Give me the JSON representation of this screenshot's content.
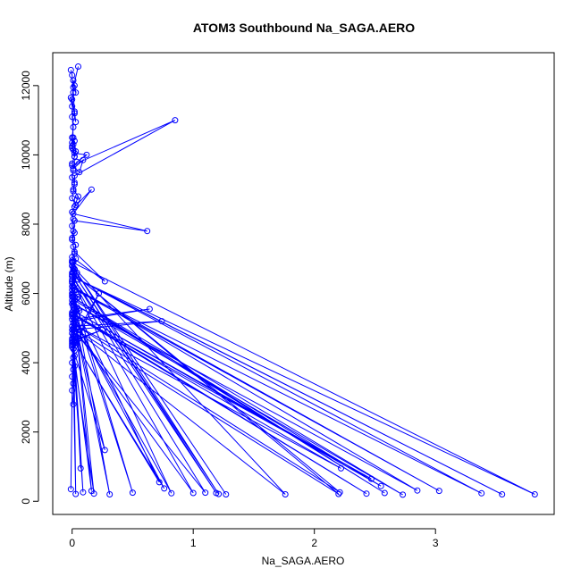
{
  "chart_data": {
    "type": "line",
    "title": "ATOM3 Southbound Na_SAGA.AERO",
    "xlabel": "Na_SAGA.AERO",
    "ylabel": "Altitude (m)",
    "xlim": [
      -0.16,
      3.98
    ],
    "ylim": [
      -380,
      12950
    ],
    "xticks": [
      0,
      1,
      2,
      3
    ],
    "yticks": [
      0,
      2000,
      4000,
      6000,
      8000,
      10000,
      12000
    ],
    "grid": false,
    "legend": "none",
    "series_color": "#0000ff",
    "marker": "open-circle",
    "series": [
      {
        "x": [
          0.05,
          0.01,
          0.03,
          0.02,
          0.01,
          0.0,
          -0.01,
          0.02,
          0.03,
          0.0,
          0.01,
          0.02,
          0.0,
          0.01,
          0.03,
          0.02,
          0.0,
          0.02,
          0.12,
          0.04,
          0.01,
          0.09,
          0.06,
          0.0,
          0.85,
          0.02,
          0.02,
          0.01,
          0.05,
          0.04,
          0.02,
          0.16,
          0.01,
          0.62,
          0.02,
          0.01,
          0.0,
          0.03,
          0.02,
          0.27,
          0.0,
          0.01,
          0.02,
          0.04,
          0.03,
          0.0,
          0.01,
          0.02,
          0.0,
          0.05,
          0.04,
          0.0,
          0.01,
          0.05,
          0.06,
          0.0,
          0.01,
          0.03,
          0.0,
          0.64,
          0.02,
          0.01,
          0.03,
          0.0,
          0.74,
          0.01,
          0.08,
          0.02,
          0.0,
          0.01,
          0.02,
          0.06,
          0.0,
          0.01,
          0.02,
          0.03,
          0.0,
          0.05,
          0.25,
          0.0,
          0.22,
          0.01,
          0.04,
          0.02,
          0.0,
          0.01,
          0.03,
          0.0,
          0.02,
          0.0,
          0.01,
          0.03,
          0.0
        ],
        "y": [
          12550,
          11950,
          11800,
          12000,
          12150,
          11400,
          11650,
          11250,
          10950,
          11600,
          10300,
          10400,
          10250,
          10500,
          10100,
          9950,
          10200,
          10050,
          10000,
          9800,
          9600,
          9850,
          9500,
          9700,
          11000,
          9400,
          9200,
          9000,
          8800,
          8700,
          8500,
          9000,
          8300,
          7800,
          8100,
          7800,
          7600,
          7400,
          7200,
          6350,
          7050,
          6900,
          6700,
          6600,
          6500,
          6350,
          6200,
          6100,
          6000,
          5900,
          5850,
          5700,
          5650,
          5550,
          5500,
          5450,
          5400,
          5300,
          5250,
          5550,
          5200,
          5150,
          5100,
          5050,
          5200,
          4950,
          5000,
          4900,
          4850,
          4800,
          4750,
          4700,
          4650,
          4600,
          4550,
          4500,
          4450,
          4700,
          4950,
          4600,
          6000,
          4400,
          5600,
          5900,
          6100,
          6600,
          6500,
          6800,
          6250,
          6300,
          6700,
          7000,
          6900
        ]
      },
      {
        "x": [
          -0.01,
          0.0,
          0.01,
          0.02,
          0.0,
          0.01,
          0.0,
          0.0,
          0.01,
          0.02,
          0.0,
          0.01,
          0.0,
          0.02,
          0.01,
          0.0,
          0.03,
          0.0,
          0.01,
          0.0,
          0.02,
          0.0,
          0.01,
          0.02,
          0.0,
          0.01,
          0.0,
          0.0,
          0.01,
          0.0,
          0.01,
          0.02,
          0.0,
          0.01,
          0.0,
          0.01,
          0.0,
          0.02,
          0.01,
          0.0,
          0.02,
          0.01,
          0.0,
          0.01,
          0.0,
          0.01
        ],
        "y": [
          12450,
          12300,
          11800,
          11200,
          11100,
          10800,
          10500,
          10350,
          10150,
          9950,
          9750,
          9550,
          9350,
          9150,
          8950,
          8750,
          8550,
          8350,
          8150,
          7950,
          7750,
          7550,
          7350,
          7150,
          6950,
          6750,
          6550,
          6350,
          6150,
          5950,
          5750,
          5550,
          5350,
          5150,
          4950,
          4750,
          4550,
          4350,
          4150,
          4000,
          3900,
          3800,
          3600,
          3400,
          3200,
          2800
        ]
      },
      {
        "x": [
          0.0,
          3.82,
          0.05,
          3.55,
          0.0,
          3.38,
          0.03,
          3.03,
          0.0,
          2.85,
          0.01,
          2.73,
          0.0,
          2.58,
          0.02,
          2.55,
          0.01,
          2.47,
          0.0,
          2.43,
          0.04,
          2.22,
          0.02,
          2.21,
          0.0,
          2.2,
          0.01,
          1.76,
          0.0,
          1.27,
          0.02,
          1.21,
          0.01,
          1.19,
          0.0,
          1.1,
          0.03,
          1.0,
          0.0,
          0.82,
          0.01,
          0.76,
          0.02,
          0.72,
          0.0,
          0.5,
          0.01,
          0.31,
          0.02,
          0.27,
          0.0,
          0.18,
          0.01,
          0.16,
          0.0,
          0.09,
          0.02,
          0.07,
          0.0,
          0.03,
          0.01,
          -0.01
        ],
        "y": [
          6900,
          200,
          6400,
          200,
          6500,
          230,
          6100,
          300,
          6200,
          310,
          5700,
          190,
          5900,
          240,
          5800,
          440,
          5500,
          650,
          5400,
          220,
          5350,
          950,
          5100,
          260,
          6600,
          210,
          5000,
          200,
          6800,
          200,
          6700,
          210,
          6600,
          240,
          6500,
          250,
          4900,
          240,
          6400,
          230,
          5300,
          370,
          4600,
          550,
          5800,
          250,
          6000,
          200,
          5200,
          1480,
          4500,
          220,
          5900,
          300,
          4700,
          260,
          4200,
          950,
          5400,
          210,
          5600,
          350
        ]
      }
    ]
  }
}
